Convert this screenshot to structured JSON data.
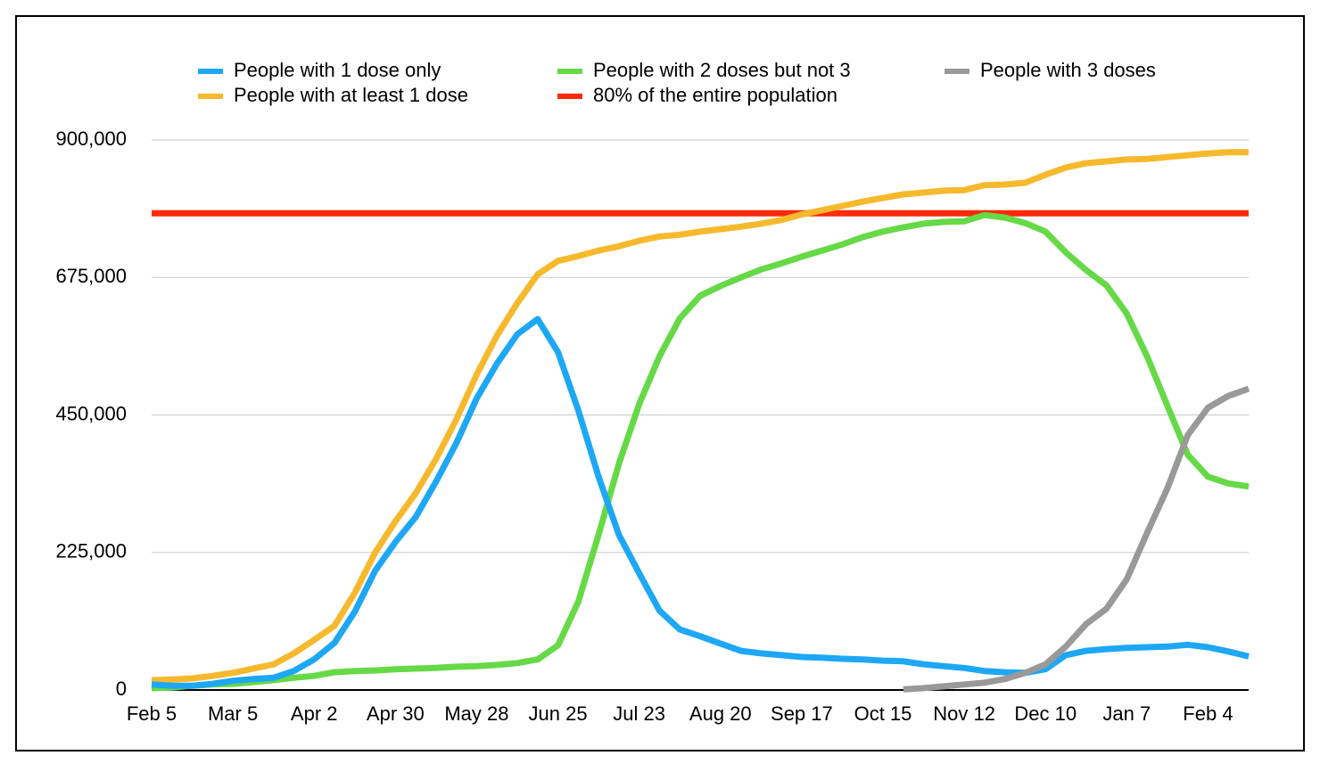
{
  "chart_data": {
    "type": "line",
    "categories": [
      "Feb 5",
      null,
      null,
      null,
      "Mar 5",
      null,
      null,
      null,
      "Apr 2",
      null,
      null,
      null,
      "Apr 30",
      null,
      null,
      null,
      "May 28",
      null,
      null,
      null,
      "Jun 25",
      null,
      null,
      null,
      "Jul 23",
      null,
      null,
      null,
      "Aug 20",
      null,
      null,
      null,
      "Sep 17",
      null,
      null,
      null,
      "Oct 15",
      null,
      null,
      null,
      "Nov 12",
      null,
      null,
      null,
      "Dec 10",
      null,
      null,
      null,
      "Jan 7",
      null,
      null,
      null,
      "Feb 4",
      null,
      null
    ],
    "series": [
      {
        "name": "People with 1 dose only",
        "color": "#1ea7f5",
        "values": [
          9000,
          7000,
          7000,
          10000,
          15000,
          18000,
          20000,
          31000,
          50000,
          77000,
          128000,
          195000,
          242000,
          283000,
          341000,
          404000,
          477000,
          534000,
          582000,
          607000,
          553000,
          458000,
          349000,
          254000,
          191000,
          130000,
          99000,
          88000,
          76000,
          64000,
          60000,
          57000,
          54000,
          53000,
          51000,
          50000,
          48000,
          47000,
          42000,
          39000,
          36000,
          31000,
          29000,
          28000,
          34000,
          57000,
          64000,
          67000,
          69000,
          70000,
          71000,
          74000,
          70000,
          63000,
          55000
        ]
      },
      {
        "name": "People with 2 doses but not 3",
        "color": "#66d947",
        "values": [
          3000,
          4000,
          7000,
          9000,
          10000,
          13000,
          16000,
          20000,
          23000,
          29000,
          31000,
          32000,
          34000,
          35000,
          36000,
          38000,
          39000,
          41000,
          44000,
          50000,
          73000,
          144000,
          254000,
          370000,
          468000,
          546000,
          608000,
          645000,
          661000,
          675000,
          688000,
          698000,
          709000,
          719000,
          729000,
          741000,
          750000,
          757000,
          763000,
          766000,
          767000,
          777000,
          773000,
          764000,
          750000,
          716000,
          687000,
          662000,
          616000,
          546000,
          465000,
          385000,
          349000,
          338000,
          333000
        ]
      },
      {
        "name": "People with 3 doses",
        "color": "#999999",
        "values": [
          null,
          null,
          null,
          null,
          null,
          null,
          null,
          null,
          null,
          null,
          null,
          null,
          null,
          null,
          null,
          null,
          null,
          null,
          null,
          null,
          null,
          null,
          null,
          null,
          null,
          null,
          null,
          null,
          null,
          null,
          null,
          null,
          null,
          null,
          null,
          null,
          null,
          1000,
          3000,
          6000,
          9000,
          12000,
          18000,
          28000,
          42000,
          71000,
          108000,
          133000,
          181000,
          257000,
          330000,
          417000,
          462000,
          481000,
          493000
        ]
      },
      {
        "name": "People with at least 1 dose",
        "color": "#f6b92e",
        "values": [
          16000,
          17000,
          19000,
          23000,
          28000,
          35000,
          42000,
          60000,
          82000,
          105000,
          159000,
          225000,
          276000,
          322000,
          378000,
          443000,
          516000,
          580000,
          633000,
          680000,
          702000,
          710000,
          719000,
          726000,
          735000,
          742000,
          745000,
          750000,
          754000,
          758000,
          763000,
          769000,
          778000,
          785000,
          792000,
          799000,
          805000,
          811000,
          814000,
          817000,
          818000,
          826000,
          827000,
          830000,
          843000,
          855000,
          862000,
          865000,
          868000,
          869000,
          872000,
          875000,
          878000,
          880000,
          880000
        ]
      },
      {
        "name": "80% of the entire population",
        "color": "#ff2a0a",
        "values": [
          780000,
          780000,
          780000,
          780000,
          780000,
          780000,
          780000,
          780000,
          780000,
          780000,
          780000,
          780000,
          780000,
          780000,
          780000,
          780000,
          780000,
          780000,
          780000,
          780000,
          780000,
          780000,
          780000,
          780000,
          780000,
          780000,
          780000,
          780000,
          780000,
          780000,
          780000,
          780000,
          780000,
          780000,
          780000,
          780000,
          780000,
          780000,
          780000,
          780000,
          780000,
          780000,
          780000,
          780000,
          780000,
          780000,
          780000,
          780000,
          780000,
          780000,
          780000,
          780000,
          780000,
          780000,
          780000
        ]
      }
    ],
    "ylim": [
      0,
      900000
    ],
    "yticks": [
      0,
      {
        "value": 225000,
        "label": "225,000"
      },
      {
        "value": 450000,
        "label": "450,000"
      },
      {
        "value": 675000,
        "label": "675,000"
      },
      {
        "value": 900000,
        "label": "900,000"
      }
    ],
    "grid": true,
    "legend": "top"
  }
}
